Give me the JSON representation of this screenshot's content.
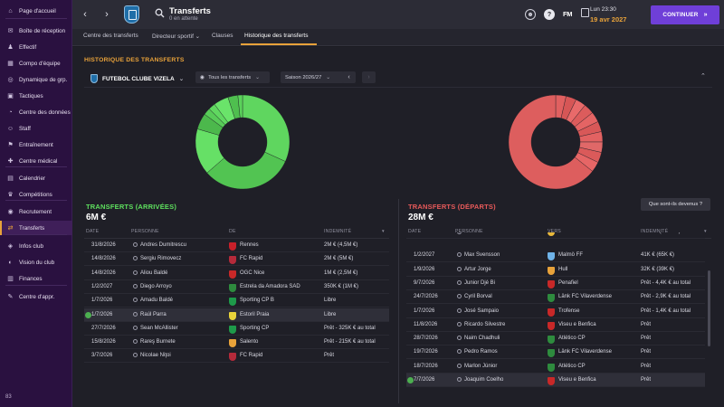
{
  "sidebar": {
    "items": [
      {
        "label": "Page d'accueil",
        "icon": "home-icon",
        "glyph": "⌂"
      },
      {
        "label": "Boîte de réception",
        "icon": "inbox-icon",
        "glyph": "✉"
      },
      {
        "label": "Effectif",
        "icon": "squad-icon",
        "glyph": "♟"
      },
      {
        "label": "Compo d'équipe",
        "icon": "formation-icon",
        "glyph": "▦"
      },
      {
        "label": "Dynamique de grp.",
        "icon": "dynamics-icon",
        "glyph": "◎"
      },
      {
        "label": "Tactiques",
        "icon": "tactics-icon",
        "glyph": "▣"
      },
      {
        "label": "Centre des données",
        "icon": "data-icon",
        "glyph": "◔"
      },
      {
        "label": "Staff",
        "icon": "staff-icon",
        "glyph": "☺"
      },
      {
        "label": "Entraînement",
        "icon": "training-icon",
        "glyph": "⚑"
      },
      {
        "label": "Centre médical",
        "icon": "medical-icon",
        "glyph": "✚"
      },
      {
        "label": "Calendrier",
        "icon": "calendar-icon",
        "glyph": "▤"
      },
      {
        "label": "Compétitions",
        "icon": "trophy-icon",
        "glyph": "♛"
      },
      {
        "label": "Recrutement",
        "icon": "scouting-icon",
        "glyph": "◉"
      },
      {
        "label": "Transferts",
        "icon": "transfers-icon",
        "glyph": "⇄",
        "active": true
      },
      {
        "label": "Infos club",
        "icon": "club-info-icon",
        "glyph": "◈"
      },
      {
        "label": "Vision du club",
        "icon": "club-vision-icon",
        "glyph": "◐"
      },
      {
        "label": "Finances",
        "icon": "finances-icon",
        "glyph": "▥"
      },
      {
        "label": "Centre d'appr.",
        "icon": "development-icon",
        "glyph": "✎"
      }
    ],
    "bottom_label": "83"
  },
  "header": {
    "title": "Transferts",
    "subtitle": "0 en attente",
    "fm_logo": "FM",
    "time": "Lun 23:30",
    "date": "19 avr 2027",
    "continue_label": "CONTINUER",
    "help_glyph": "?"
  },
  "tabs": [
    {
      "label": "Centre des transferts"
    },
    {
      "label": "Directeur sportif ⌄"
    },
    {
      "label": "Clauses"
    },
    {
      "label": "Historique des transferts",
      "active": true
    }
  ],
  "history": {
    "title": "HISTORIQUE DES TRANSFERTS",
    "club_name": "FUTEBOL CLUBE VIZELA",
    "filter_label": "Tous les transferts",
    "season_label": "Saison 2026/27"
  },
  "arrivals": {
    "title": "TRANSFERTS (ARRIVÉES)",
    "total": "6M €",
    "title_color": "#5ee05e",
    "columns": [
      "DATE",
      "PERSONNE",
      "DE",
      "INDEMNITÉ"
    ],
    "rows": [
      {
        "date": "31/8/2026",
        "person": "Andres Dumitrescu",
        "club": "Rennes",
        "fee": "2M € (4,5M €)",
        "crest": "#c8202a"
      },
      {
        "date": "14/8/2026",
        "person": "Sergiu Rimovecz",
        "club": "FC Rapid",
        "fee": "2M € (5M €)",
        "crest": "#b52a3a"
      },
      {
        "date": "14/8/2026",
        "person": "Aliou Baldé",
        "club": "OGC Nice",
        "fee": "1M € (2,5M €)",
        "crest": "#c82828"
      },
      {
        "date": "1/2/2027",
        "person": "Diego Arroyo",
        "club": "Estrela da Amadora SAD",
        "fee": "350K € (1M €)",
        "crest": "#2e8b3e"
      },
      {
        "date": "1/7/2026",
        "person": "Amadu Baldé",
        "club": "Sporting CP B",
        "fee": "Libre",
        "crest": "#1e9a4a"
      },
      {
        "date": "1/7/2026",
        "person": "Raúl Parra",
        "club": "Estoril Praia",
        "fee": "Libre",
        "crest": "#e8d23a",
        "highlight": true,
        "check": true
      },
      {
        "date": "27/7/2026",
        "person": "Sean McAllister",
        "club": "Sporting CP",
        "fee": "Prêt - 325K € au total",
        "crest": "#1e9a4a"
      },
      {
        "date": "15/8/2026",
        "person": "Rareş Burnete",
        "club": "Salento",
        "fee": "Prêt - 215K € au total",
        "crest": "#e8a23a"
      },
      {
        "date": "3/7/2026",
        "person": "Nicolae Niţoi",
        "club": "FC Rapid",
        "fee": "Prêt",
        "crest": "#b52a3a"
      }
    ]
  },
  "departures": {
    "title": "TRANSFERTS (DÉPARTS)",
    "total": "28M €",
    "title_color": "#e85a5a",
    "info_button": "Que sont-ils devenus ?",
    "columns": [
      "DATE",
      "PERSONNE",
      "VERS",
      "INDEMNITÉ"
    ],
    "rows": [
      {
        "date": "4/1/2027",
        "person": "Raúl Parra",
        "club": "AVS SAD",
        "fee": "190K € (230K €)",
        "crest": "#e8b83a",
        "partial": true
      },
      {
        "date": "1/2/2027",
        "person": "Max Svensson",
        "club": "Malmö FF",
        "fee": "41K € (65K €)",
        "crest": "#6fb3e8"
      },
      {
        "date": "1/9/2026",
        "person": "Artur Jorge",
        "club": "Hull",
        "fee": "32K € (39K €)",
        "crest": "#e8a23a"
      },
      {
        "date": "9/7/2026",
        "person": "Junior Djé Bi",
        "club": "Penafiel",
        "fee": "Prêt - 4,4K € au total",
        "crest": "#c82828"
      },
      {
        "date": "24/7/2026",
        "person": "Cyril Borval",
        "club": "Länk FC Vilaverdense",
        "fee": "Prêt - 2,9K € au total",
        "crest": "#2e8b3e"
      },
      {
        "date": "1/7/2026",
        "person": "José Sampaio",
        "club": "Trofense",
        "fee": "Prêt - 1,4K € au total",
        "crest": "#c82828"
      },
      {
        "date": "11/8/2026",
        "person": "Ricardo Silvestre",
        "club": "Viseu e Benfica",
        "fee": "Prêt",
        "crest": "#c82828"
      },
      {
        "date": "28/7/2026",
        "person": "Naim Chadhuli",
        "club": "Atlético CP",
        "fee": "Prêt",
        "crest": "#2e8b3e"
      },
      {
        "date": "19/7/2026",
        "person": "Pedro Ramos",
        "club": "Länk FC Vilaverdense",
        "fee": "Prêt",
        "crest": "#2e8b3e"
      },
      {
        "date": "18/7/2026",
        "person": "Marlon Júnior",
        "club": "Atlético CP",
        "fee": "Prêt",
        "crest": "#2e8b3e"
      },
      {
        "date": "7/7/2026",
        "person": "Joaquim Coelho",
        "club": "Viseu e Benfica",
        "fee": "Prêt",
        "crest": "#c82828",
        "highlight": true,
        "check": true
      }
    ]
  },
  "donut_arrivals": {
    "colors": [
      "#5fd65f",
      "#52c452",
      "#66e066",
      "#4cb84c",
      "#58cc58",
      "#60d860",
      "#6ae46a",
      "#4fbf4f",
      "#5ad25a"
    ],
    "values": [
      2,
      2,
      1,
      0.35,
      0.15,
      0.15,
      0.325,
      0.215,
      0.1
    ]
  },
  "donut_departures": {
    "colors": [
      "#e06060",
      "#d65656",
      "#e86a6a",
      "#dc5c5c",
      "#e46464",
      "#d85858",
      "#e26262",
      "#e06868",
      "#da5a5a",
      "#e66666",
      "#dd5e5e"
    ],
    "values": [
      1,
      1,
      1,
      1,
      1,
      1,
      1,
      1,
      1,
      1,
      18
    ]
  }
}
